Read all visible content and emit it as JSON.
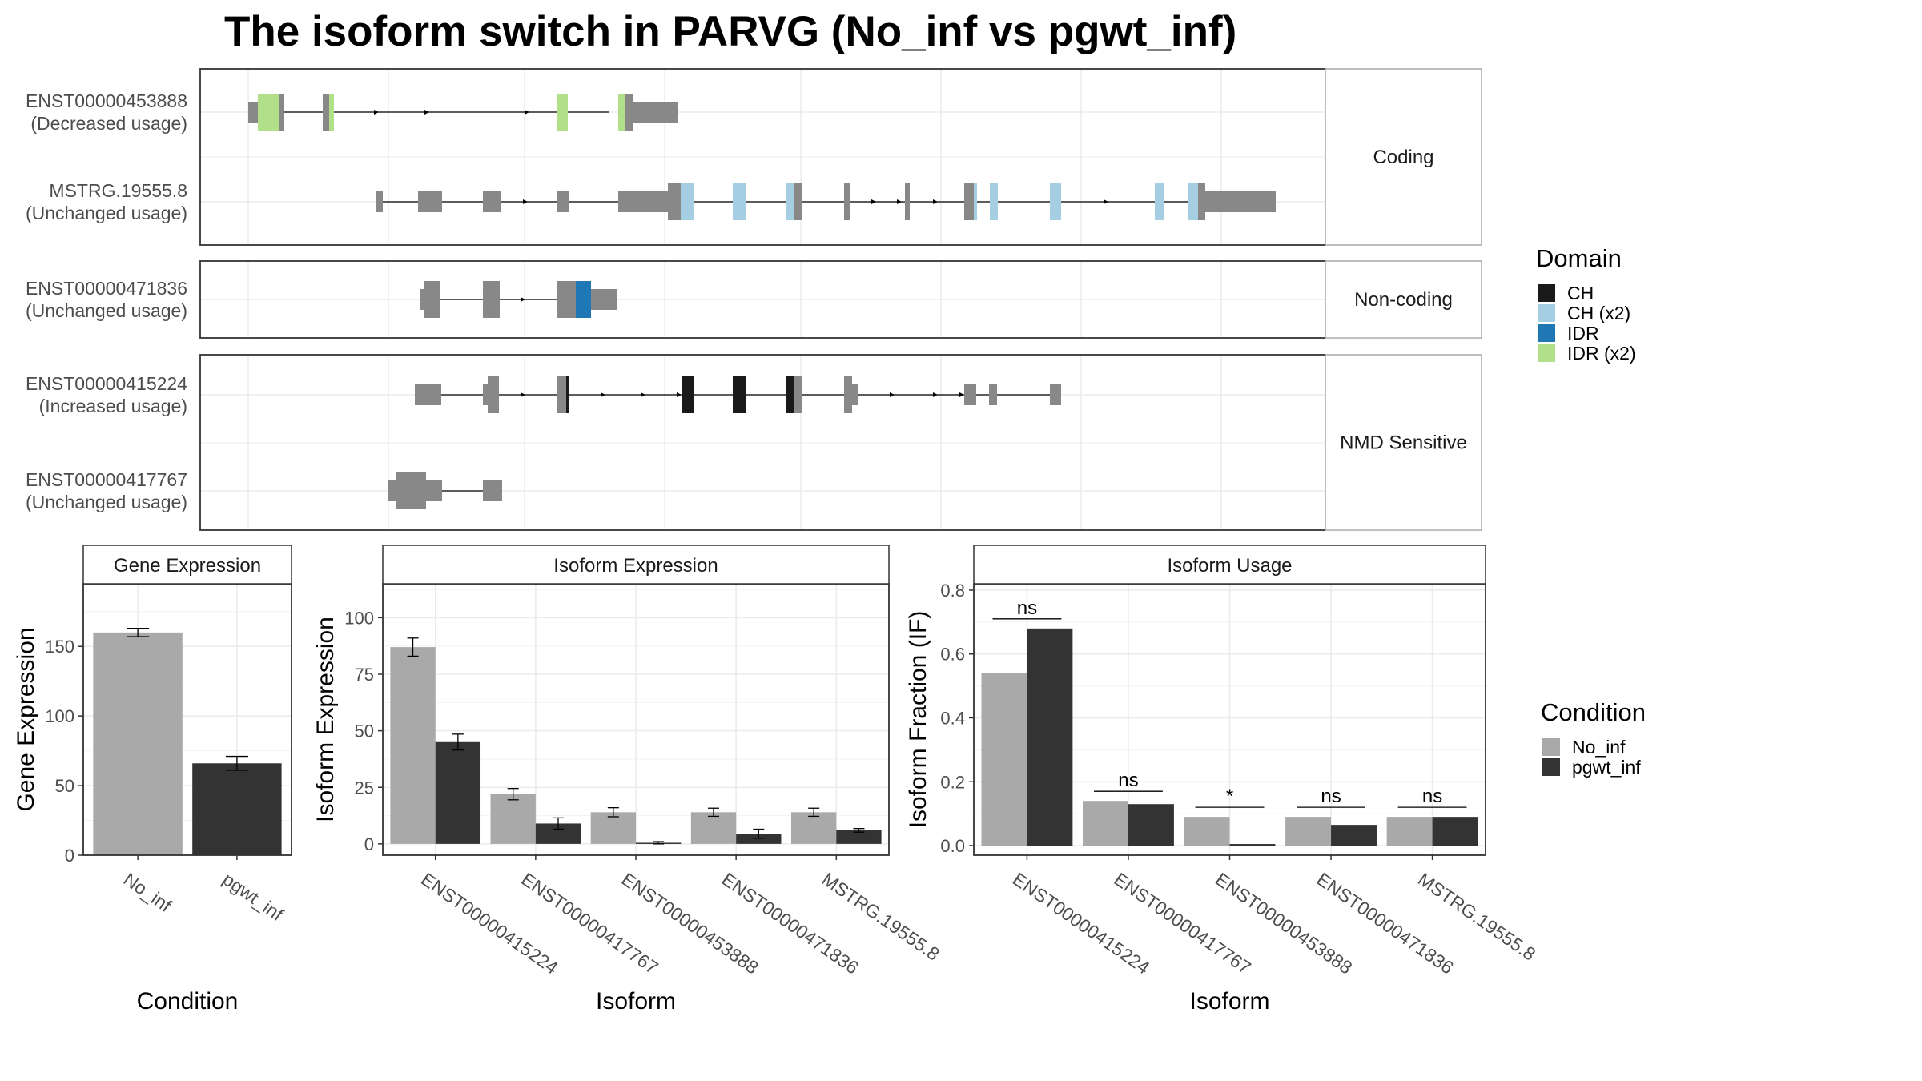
{
  "title": "The isoform switch in PARVG (No_inf vs pgwt_inf)",
  "colors": {
    "exon": "#888888",
    "CH": "#1a1a1a",
    "CH_x2": "#a6cee3",
    "IDR": "#1f78b4",
    "IDR_x2": "#b2df8a",
    "No_inf": "#a9a9a9",
    "pgwt_inf": "#333333",
    "grid": "#ebebeb",
    "strip": "#ffffff",
    "panel_border": "#333333"
  },
  "structure": {
    "facets": [
      {
        "label": "Coding",
        "tracks": [
          {
            "id": "ENST00000453888",
            "usage": "(Decreased usage)"
          },
          {
            "id": "MSTRG.19555.8",
            "usage": "(Unchanged usage)"
          }
        ]
      },
      {
        "label": "Non-coding",
        "tracks": [
          {
            "id": "ENST00000471836",
            "usage": "(Unchanged usage)"
          }
        ]
      },
      {
        "label": "NMD Sensitive",
        "tracks": [
          {
            "id": "ENST00000415224",
            "usage": "(Increased usage)"
          },
          {
            "id": "ENST00000417767",
            "usage": "(Unchanged usage)"
          }
        ]
      }
    ],
    "domain_legend": {
      "title": "Domain",
      "items": [
        {
          "label": "CH",
          "color": "#1a1a1a"
        },
        {
          "label": "CH (x2)",
          "color": "#a6cee3"
        },
        {
          "label": "IDR",
          "color": "#1f78b4"
        },
        {
          "label": "IDR (x2)",
          "color": "#b2df8a"
        }
      ]
    }
  },
  "chart_data": [
    {
      "type": "bar",
      "title": "Gene Expression",
      "xlabel": "Condition",
      "ylabel": "Gene Expression",
      "categories": [
        "No_inf",
        "pgwt_inf"
      ],
      "values": [
        160,
        66
      ],
      "errors": [
        3,
        5
      ],
      "ylim": [
        0,
        195
      ],
      "yticks": [
        0,
        50,
        100,
        150
      ]
    },
    {
      "type": "bar",
      "title": "Isoform Expression",
      "xlabel": "Isoform",
      "ylabel": "Isoform Expression",
      "categories": [
        "ENST00000415224",
        "ENST00000417767",
        "ENST00000453888",
        "ENST00000471836",
        "MSTRG.19555.8"
      ],
      "series": [
        {
          "name": "No_inf",
          "values": [
            87,
            22,
            14,
            14,
            14
          ],
          "errors": [
            4,
            2.5,
            2,
            1.8,
            1.8
          ]
        },
        {
          "name": "pgwt_inf",
          "values": [
            45,
            9,
            0.5,
            4.5,
            6
          ],
          "errors": [
            3.5,
            2.5,
            0.5,
            2,
            0.8
          ]
        }
      ],
      "ylim": [
        -5,
        115
      ],
      "yticks": [
        0,
        25,
        50,
        75,
        100
      ]
    },
    {
      "type": "bar",
      "title": "Isoform Usage",
      "xlabel": "Isoform",
      "ylabel": "Isoform Fraction (IF)",
      "categories": [
        "ENST00000415224",
        "ENST00000417767",
        "ENST00000453888",
        "ENST00000471836",
        "MSTRG.19555.8"
      ],
      "series": [
        {
          "name": "No_inf",
          "values": [
            0.54,
            0.14,
            0.09,
            0.09,
            0.09
          ]
        },
        {
          "name": "pgwt_inf",
          "values": [
            0.68,
            0.13,
            0.005,
            0.065,
            0.09
          ]
        }
      ],
      "significance": [
        "ns",
        "ns",
        "*",
        "ns",
        "ns"
      ],
      "ylim": [
        -0.03,
        0.82
      ],
      "yticks": [
        0.0,
        0.2,
        0.4,
        0.6,
        0.8
      ]
    }
  ],
  "condition_legend": {
    "title": "Condition",
    "items": [
      {
        "label": "No_inf",
        "color": "#a9a9a9"
      },
      {
        "label": "pgwt_inf",
        "color": "#333333"
      }
    ]
  }
}
